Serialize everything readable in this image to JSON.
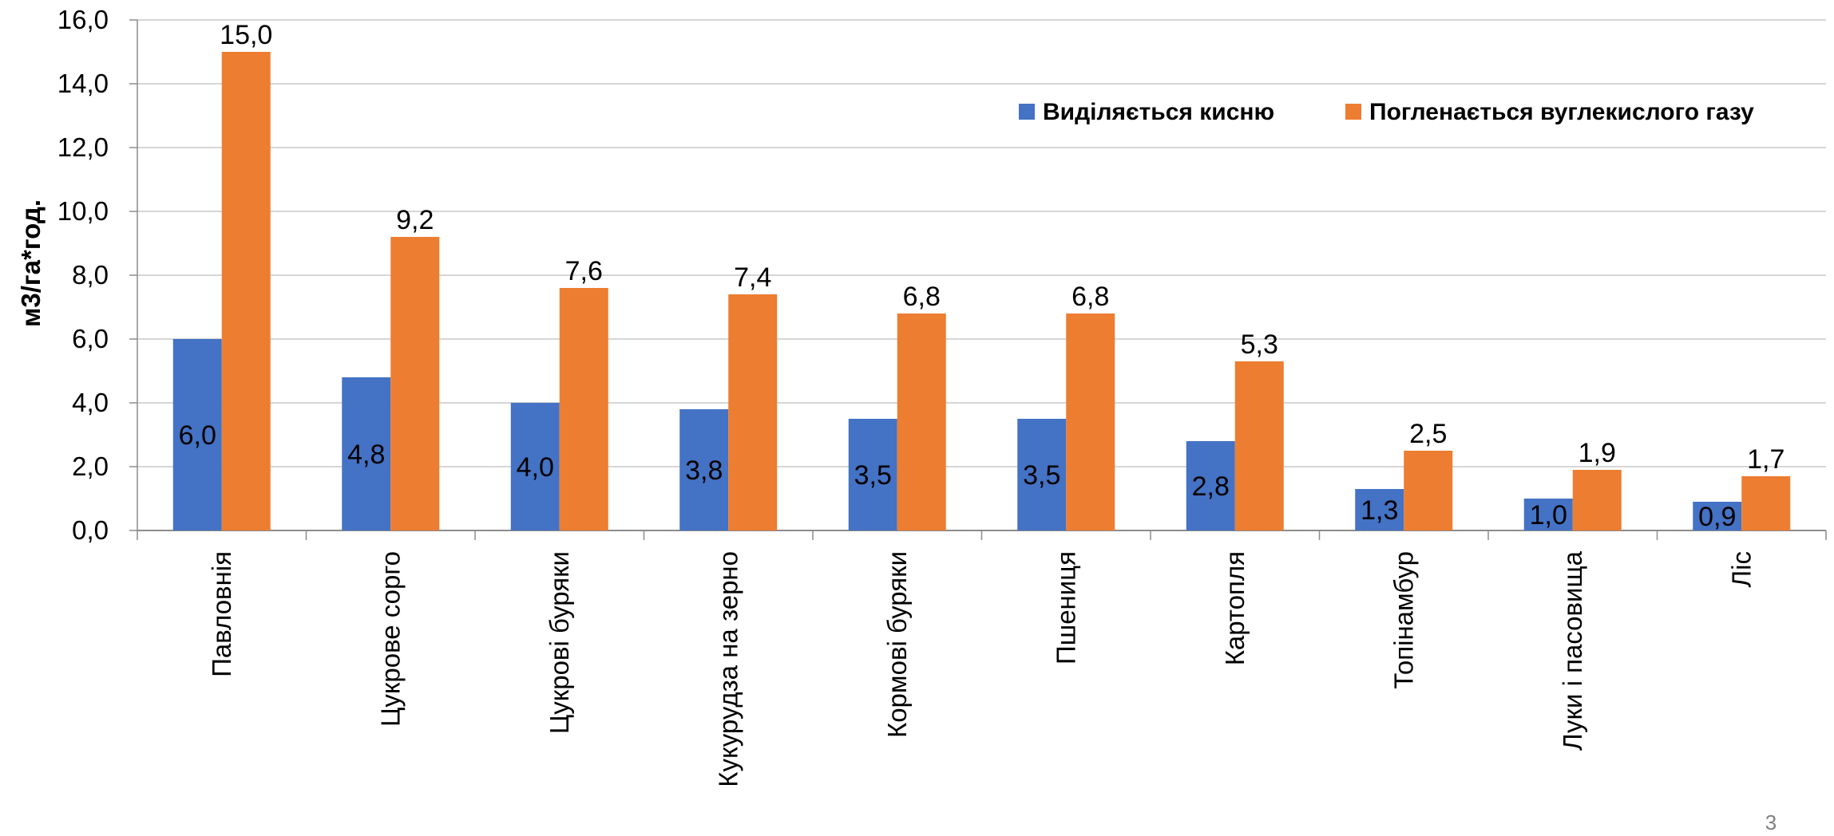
{
  "chart_data": {
    "type": "bar",
    "title": "",
    "xlabel": "",
    "ylabel": "м3/га*год.",
    "ylim": [
      0,
      16
    ],
    "yticks": [
      "0,0",
      "2,0",
      "4,0",
      "6,0",
      "8,0",
      "10,0",
      "12,0",
      "14,0",
      "16,0"
    ],
    "grid": true,
    "legend_position": "top-right",
    "categories": [
      "Павловнія",
      "Цукрове сорго",
      "Цукрові буряки",
      "Кукурудза на зерно",
      "Кормові буряки",
      "Пшениця",
      "Картопля",
      "Топінамбур",
      "Луки і пасовища",
      "Ліс"
    ],
    "series": [
      {
        "name": "Виділяється кисню",
        "color": "#4472C4",
        "values": [
          6.0,
          4.8,
          4.0,
          3.8,
          3.5,
          3.5,
          2.8,
          1.3,
          1.0,
          0.9
        ],
        "labels": [
          "6,0",
          "4,8",
          "4,0",
          "3,8",
          "3,5",
          "3,5",
          "2,8",
          "1,3",
          "1,0",
          "0,9"
        ]
      },
      {
        "name": "Погленається вуглекислого газу",
        "color": "#ED7D31",
        "values": [
          15.0,
          9.2,
          7.6,
          7.4,
          6.8,
          6.8,
          5.3,
          2.5,
          1.9,
          1.7
        ],
        "labels": [
          "15,0",
          "9,2",
          "7,6",
          "7,4",
          "6,8",
          "6,8",
          "5,3",
          "2,5",
          "1,9",
          "1,7"
        ]
      }
    ]
  },
  "page_number": "3"
}
